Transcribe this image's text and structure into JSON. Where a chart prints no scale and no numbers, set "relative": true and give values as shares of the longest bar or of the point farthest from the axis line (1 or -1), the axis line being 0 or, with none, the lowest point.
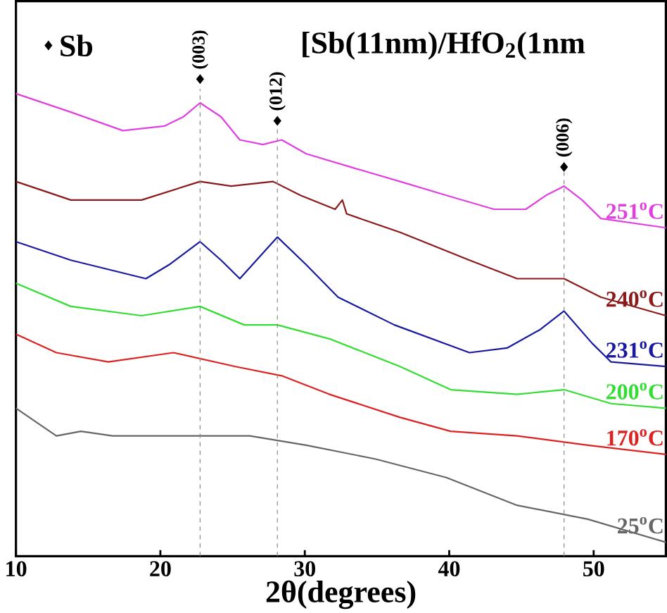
{
  "chart_data": {
    "type": "line",
    "relative": true,
    "title": "[Sb(11nm)/HfO$_{2}$(1nm",
    "xlabel": "2θ(degrees)",
    "xlim": [
      10,
      55
    ],
    "xticks": [
      10,
      20,
      30,
      40,
      50
    ],
    "grid": false,
    "legend": false,
    "marker": "none",
    "line_style": "solid",
    "annotations": [
      "Sb",
      {
        "text": "(003)",
        "x": 22.75,
        "y": 1.02
      },
      {
        "text": "(012)",
        "x": 28.1,
        "y": 0.93
      },
      {
        "text": "(006)",
        "x": 47.95,
        "y": 0.83
      }
    ],
    "ref_lines": [
      {
        "axis": "x",
        "value": 22.75,
        "color": "#888888",
        "line_style": "dashed"
      },
      {
        "axis": "x",
        "value": 28.1,
        "color": "#888888",
        "line_style": "dashed"
      },
      {
        "axis": "x",
        "value": 47.95,
        "color": "#888888",
        "line_style": "dashed"
      }
    ],
    "series": [
      {
        "name": "251$^{o}$C",
        "color": "#e040e0",
        "x": [
          10,
          13.8,
          17.4,
          20.3,
          21.6,
          22.75,
          24.2,
          25.5,
          27.1,
          28.4,
          30.1,
          33.3,
          36.6,
          39.8,
          43.1,
          45.3,
          46.7,
          47.95,
          49.2,
          50.5,
          55
        ],
        "values": [
          1.0,
          0.96,
          0.92,
          0.93,
          0.95,
          0.98,
          0.95,
          0.9,
          0.89,
          0.9,
          0.87,
          0.84,
          0.81,
          0.78,
          0.75,
          0.75,
          0.78,
          0.8,
          0.77,
          0.73,
          0.71
        ]
      },
      {
        "name": "240$^{o}$C",
        "color": "#8b1a1a",
        "x": [
          10,
          13.8,
          18.7,
          22.75,
          24.9,
          27.8,
          29.7,
          32.1,
          32.6,
          32.9,
          36.6,
          41.4,
          44.7,
          47.95,
          50.5,
          55
        ],
        "values": [
          0.81,
          0.77,
          0.77,
          0.81,
          0.8,
          0.81,
          0.78,
          0.75,
          0.77,
          0.74,
          0.7,
          0.64,
          0.6,
          0.6,
          0.56,
          0.52
        ]
      },
      {
        "name": "231$^{o}$C",
        "color": "#1a1aa0",
        "x": [
          10,
          13.8,
          19,
          20.6,
          22.75,
          24.2,
          25.5,
          28.1,
          30.1,
          32.3,
          36.2,
          41.4,
          44.0,
          46.3,
          47.95,
          49.9,
          51.2,
          55
        ],
        "values": [
          0.68,
          0.64,
          0.6,
          0.63,
          0.68,
          0.64,
          0.6,
          0.69,
          0.63,
          0.56,
          0.5,
          0.44,
          0.45,
          0.49,
          0.53,
          0.46,
          0.42,
          0.41
        ]
      },
      {
        "name": "200$^{o}$C",
        "color": "#33dd33",
        "x": [
          10,
          13.8,
          18.7,
          22.75,
          25.8,
          28.1,
          31.7,
          36.6,
          40.1,
          44.7,
          47.95,
          51.2,
          55
        ],
        "values": [
          0.59,
          0.54,
          0.52,
          0.54,
          0.5,
          0.5,
          0.47,
          0.41,
          0.36,
          0.35,
          0.36,
          0.33,
          0.32
        ]
      },
      {
        "name": "170$^{o}$C",
        "color": "#dd2222",
        "x": [
          10,
          12.8,
          16.4,
          20.9,
          25.2,
          28.4,
          31.7,
          36.6,
          40.1,
          44.7,
          49.6,
          55
        ],
        "values": [
          0.48,
          0.44,
          0.42,
          0.44,
          0.41,
          0.39,
          0.35,
          0.3,
          0.27,
          0.26,
          0.24,
          0.22
        ]
      },
      {
        "name": "25$^{o}$C",
        "color": "#666666",
        "x": [
          10,
          12.8,
          14.5,
          16.7,
          20.3,
          26.2,
          30.1,
          34.9,
          39.8,
          44.7,
          49.6,
          55
        ],
        "values": [
          0.32,
          0.26,
          0.27,
          0.26,
          0.26,
          0.26,
          0.24,
          0.21,
          0.17,
          0.11,
          0.08,
          0.03
        ]
      }
    ]
  }
}
